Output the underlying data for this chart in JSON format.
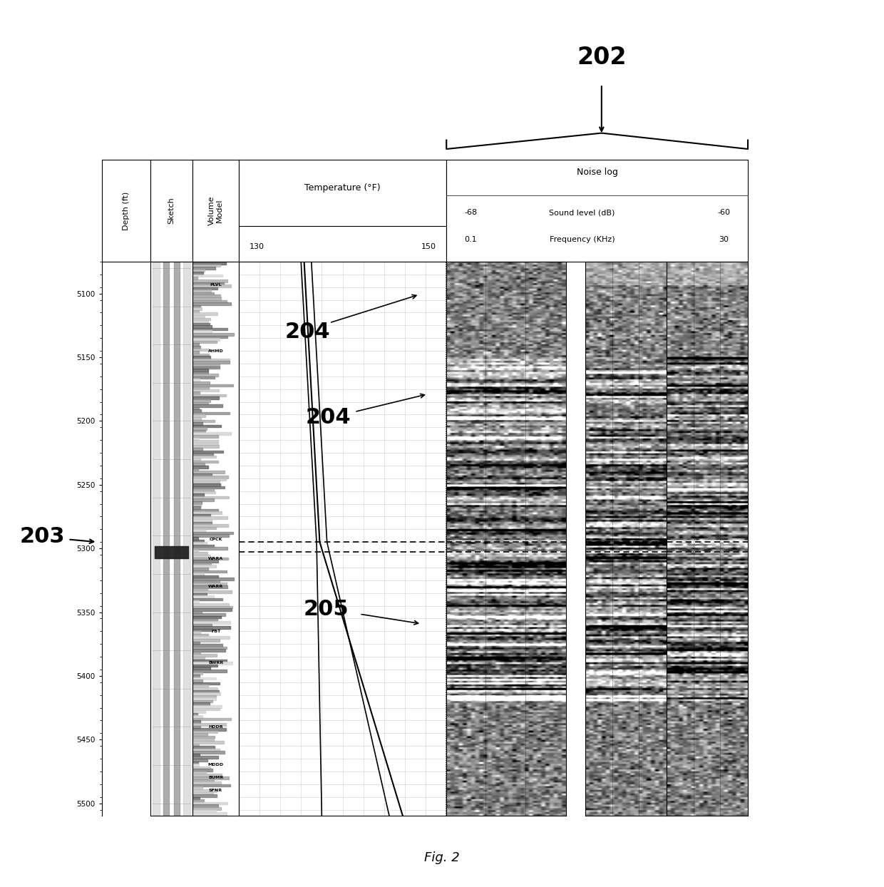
{
  "fig_width": 12.4,
  "fig_height": 12.44,
  "bg_color": "#ffffff",
  "title": "Fig. 2",
  "label_202": "202",
  "label_203": "203",
  "label_204": "204",
  "label_205": "205",
  "depth_min": 5075,
  "depth_max": 5510,
  "depth_ticks": [
    5100,
    5150,
    5200,
    5250,
    5300,
    5350,
    5400,
    5450,
    5500
  ],
  "temp_min": 130,
  "temp_max": 150,
  "noise_sound_min": -68,
  "noise_sound_max": -60,
  "noise_freq_min": 0.1,
  "noise_freq_max": 30,
  "formation_labels": [
    {
      "name": "PLVL",
      "depth": 5093
    },
    {
      "name": "AHMD",
      "depth": 5145
    },
    {
      "name": "CPCK",
      "depth": 5293
    },
    {
      "name": "WARA",
      "depth": 5308
    },
    {
      "name": "WARR",
      "depth": 5330
    },
    {
      "name": "FBT",
      "depth": 5365
    },
    {
      "name": "BWRR",
      "depth": 5390
    },
    {
      "name": "HDDR",
      "depth": 5440
    },
    {
      "name": "MDDD",
      "depth": 5470
    },
    {
      "name": "BUMR",
      "depth": 5480
    },
    {
      "name": "SFNR",
      "depth": 5490
    }
  ],
  "dashed_line_depth": 5295,
  "header_col_colors": "#f0f0f0",
  "grid_color": "#aaaaaa"
}
